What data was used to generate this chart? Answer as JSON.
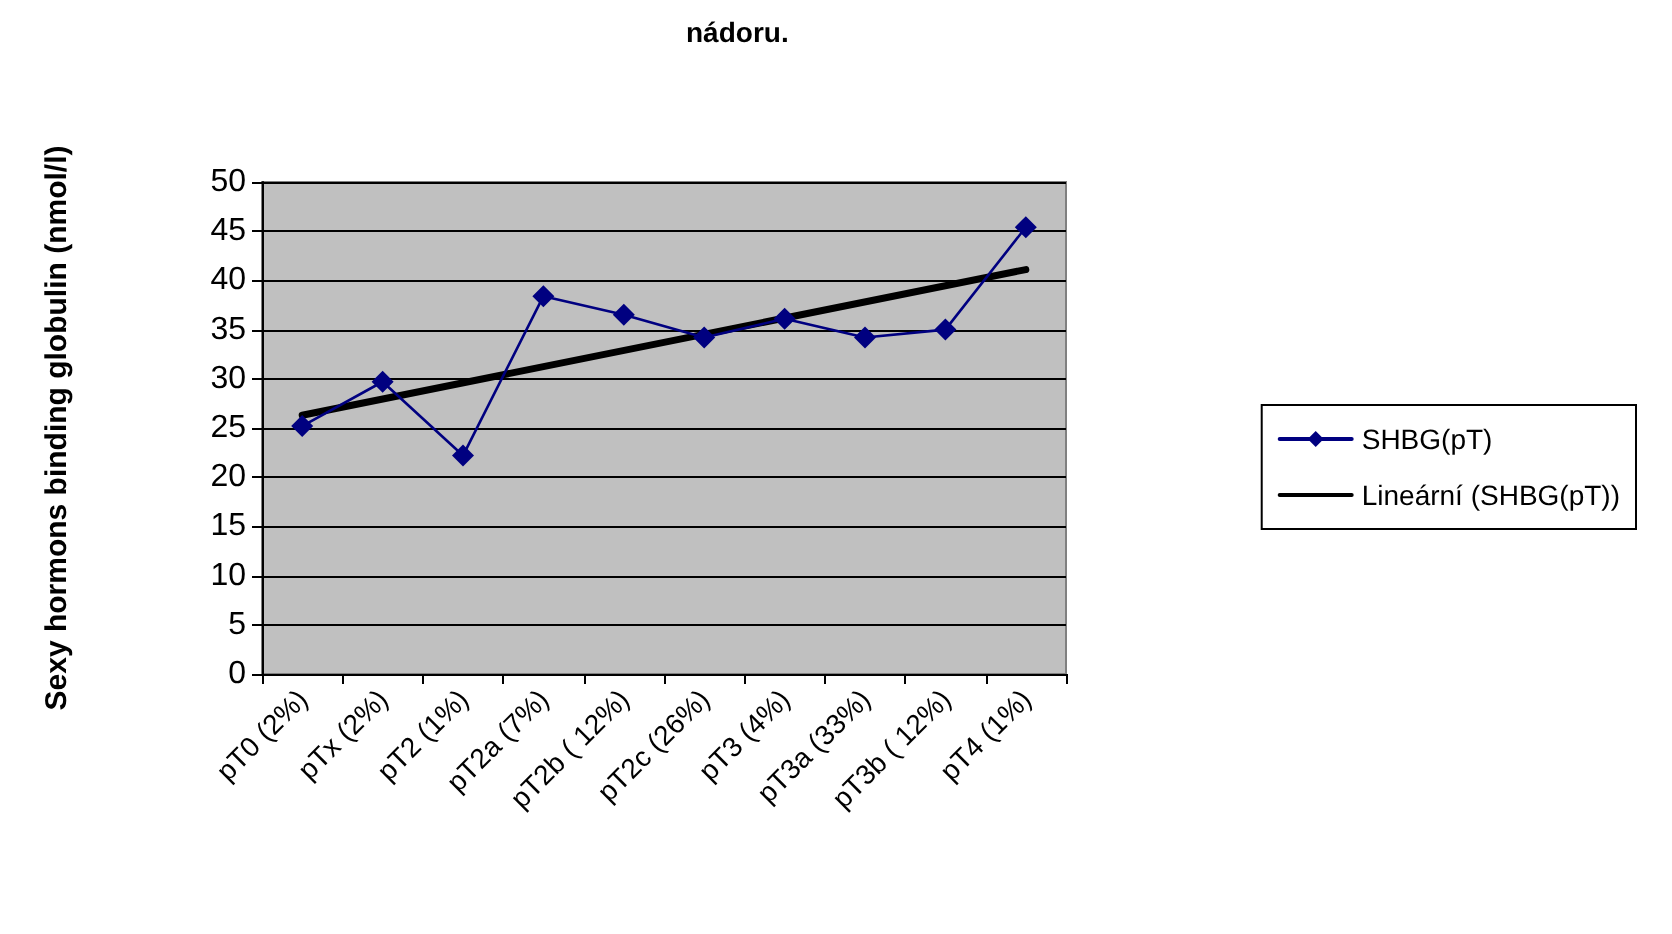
{
  "chart_data": {
    "type": "line",
    "title": "nádoru.",
    "ylabel": "Sexy hormons binding globulin (nmol/l)",
    "categories": [
      "pT0 (2%)",
      "pTx (2%)",
      "pT2 (1%)",
      "pT2a (7%)",
      "pT2b ( 12%)",
      "pT2c (26%)",
      "pT3 (4%)",
      "pT3a (33%)",
      "pT3b ( 12%)",
      "pT4 (1%)"
    ],
    "series": [
      {
        "name": "SHBG(pT)",
        "color": "#000080",
        "marker": "diamond",
        "values": [
          25.2,
          29.7,
          22.2,
          38.4,
          36.5,
          34.2,
          36.1,
          34.2,
          35.0,
          45.4
        ]
      },
      {
        "name": "Lineární (SHBG(pT))",
        "type": "line",
        "color": "#000000",
        "marker": "none",
        "x": [
          "pT0 (2%)",
          "pT4 (1%)"
        ],
        "values": [
          26.3,
          41.1
        ]
      }
    ],
    "ylim": [
      0,
      50
    ],
    "yticks": [
      0,
      5,
      10,
      15,
      20,
      25,
      30,
      35,
      40,
      45,
      50
    ],
    "grid": "y",
    "legend": "right"
  }
}
